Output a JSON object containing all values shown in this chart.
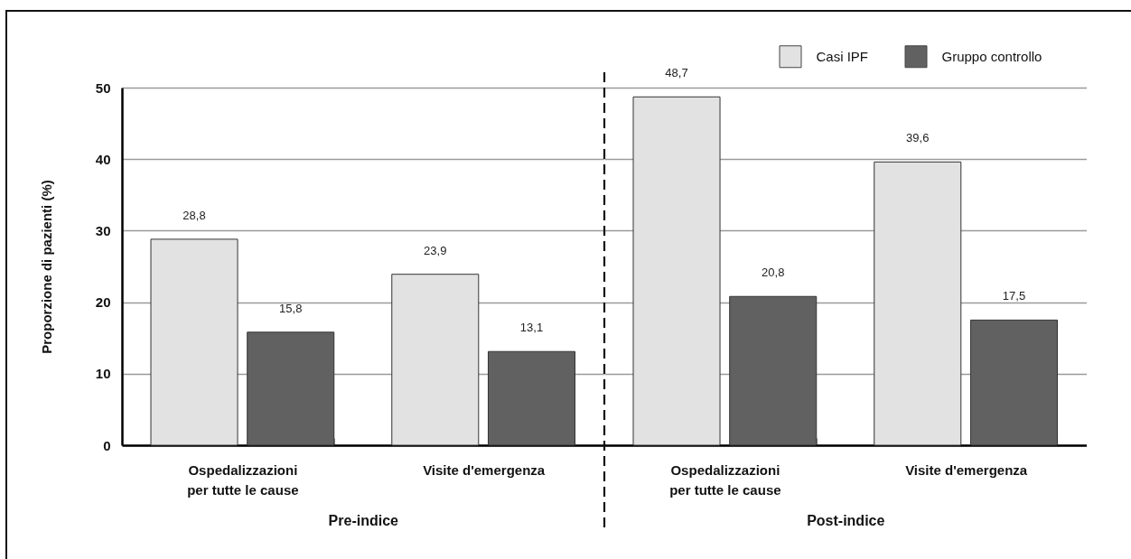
{
  "chart_data": [
    {
      "type": "bar",
      "xlabel": "Pre-indice",
      "ylabel": "Proporzione di pazienti (%)",
      "categories": [
        "Ospedalizzazioni\nper tutte le cause",
        "Visite d'emergenza"
      ],
      "series": [
        {
          "color": "#e2e2e2",
          "values": [
            28.8,
            23.9
          ],
          "value_labels": [
            "28,8",
            "23,9"
          ]
        },
        {
          "color": "#616161",
          "values": [
            15.8,
            13.1
          ],
          "value_labels": [
            "15,8",
            "13,1"
          ]
        }
      ],
      "ylim": [
        0,
        50
      ],
      "yticks": [
        0,
        10,
        20,
        30,
        40,
        50
      ],
      "grid": "y"
    },
    {
      "type": "bar",
      "xlabel": "Post-indice",
      "categories": [
        "Ospedalizzazioni\nper tutte le cause",
        "Visite d'emergenza"
      ],
      "series": [
        {
          "name": "Casi IPF",
          "color": "#e2e2e2",
          "values": [
            48.7,
            39.6
          ],
          "value_labels": [
            "48,7",
            "39,6"
          ]
        },
        {
          "name": "Gruppo controllo",
          "color": "#616161",
          "values": [
            20.8,
            17.5
          ],
          "value_labels": [
            "20,8",
            "17,5"
          ]
        }
      ],
      "ylim": [
        0,
        50
      ],
      "yticks": [
        0,
        10,
        20,
        30,
        40,
        50
      ],
      "grid": "y",
      "tick_labels": "x",
      "legend": "top right"
    }
  ]
}
